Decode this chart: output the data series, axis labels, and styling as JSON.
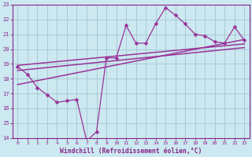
{
  "x_data": [
    0,
    1,
    2,
    3,
    4,
    5,
    6,
    7,
    8,
    9,
    10,
    11,
    12,
    13,
    14,
    15,
    16,
    17,
    18,
    19,
    20,
    21,
    22,
    23
  ],
  "y_main": [
    18.8,
    18.3,
    17.4,
    16.9,
    16.4,
    16.5,
    16.6,
    13.8,
    14.4,
    19.4,
    19.4,
    21.6,
    20.4,
    20.4,
    21.7,
    22.8,
    22.3,
    21.7,
    21.0,
    20.9,
    20.5,
    20.4,
    21.5,
    20.6
  ],
  "line1_x": [
    0,
    23
  ],
  "line1_y": [
    18.9,
    20.35
  ],
  "line2_x": [
    0,
    23
  ],
  "line2_y": [
    18.55,
    20.1
  ],
  "line3_x": [
    0,
    23
  ],
  "line3_y": [
    17.6,
    20.65
  ],
  "ylim": [
    14,
    23
  ],
  "xlim": [
    0,
    23
  ],
  "yticks": [
    14,
    15,
    16,
    17,
    18,
    19,
    20,
    21,
    22,
    23
  ],
  "xticks": [
    0,
    1,
    2,
    3,
    4,
    5,
    6,
    7,
    8,
    9,
    10,
    11,
    12,
    13,
    14,
    15,
    16,
    17,
    18,
    19,
    20,
    21,
    22,
    23
  ],
  "xlabel": "Windchill (Refroidissement éolien,°C)",
  "line_color": "#993399",
  "bg_color": "#cce8f0",
  "grid_color": "#9bbfcc",
  "tick_color": "#882288",
  "markersize": 2.5,
  "linewidth": 0.9
}
